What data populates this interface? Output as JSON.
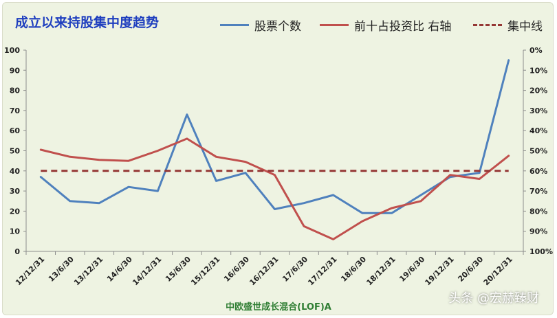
{
  "watermark": "头条 @宏赫臻财",
  "chart_data": {
    "type": "line",
    "title": "成立以来持股集中度趋势",
    "xlabel": "中欧盛世成长混合(LOF)A",
    "categories": [
      "12/12/31",
      "13/6/30",
      "13/12/31",
      "14/6/30",
      "14/12/31",
      "15/6/30",
      "15/12/31",
      "16/6/30",
      "16/12/31",
      "17/6/30",
      "17/12/31",
      "18/6/30",
      "18/12/31",
      "19/6/30",
      "19/12/31",
      "20/6/30",
      "20/12/31"
    ],
    "y_left": {
      "min": 0,
      "max": 100,
      "step": 10,
      "ticks": [
        "0",
        "10",
        "20",
        "30",
        "40",
        "50",
        "60",
        "70",
        "80",
        "90",
        "100"
      ]
    },
    "y_right": {
      "min": 0,
      "max": 100,
      "step": 10,
      "inverted": true,
      "ticks": [
        "0%",
        "10%",
        "20%",
        "30%",
        "40%",
        "50%",
        "60%",
        "70%",
        "80%",
        "90%",
        "100%"
      ]
    },
    "grid": false,
    "legend_position": "top",
    "series": [
      {
        "name": "股票个数",
        "axis": "left",
        "style": "solid",
        "color": "#4f81bd",
        "values": [
          37,
          25,
          24,
          32,
          30,
          68,
          35,
          39,
          21,
          24,
          28,
          19,
          19,
          28,
          37,
          39,
          95
        ]
      },
      {
        "name": "前十占投资比 右轴",
        "axis": "right",
        "style": "solid",
        "color": "#c0504d",
        "values": [
          49.5,
          53,
          54.5,
          55,
          50,
          44,
          53,
          55.5,
          62,
          87.5,
          94,
          85,
          78.5,
          75,
          62,
          64,
          52.5
        ]
      },
      {
        "name": "集中线",
        "axis": "right",
        "style": "dashed",
        "color": "#953735",
        "values": [
          60,
          60,
          60,
          60,
          60,
          60,
          60,
          60,
          60,
          60,
          60,
          60,
          60,
          60,
          60,
          60,
          60
        ]
      }
    ]
  }
}
